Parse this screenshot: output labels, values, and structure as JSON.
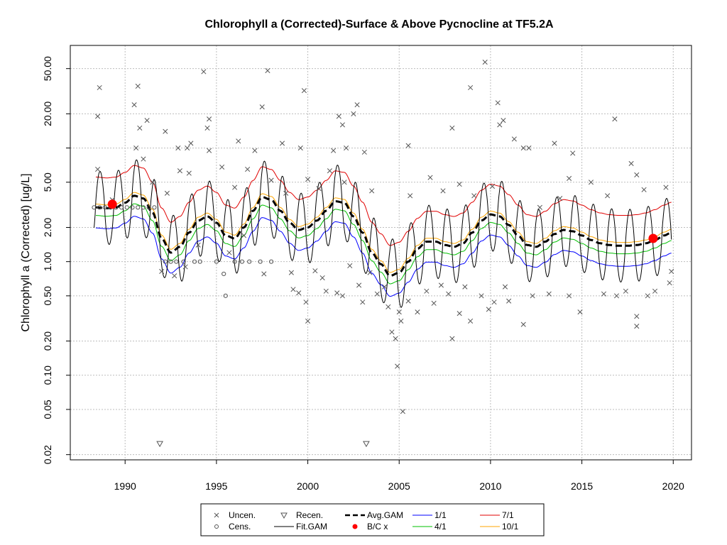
{
  "chart_data": {
    "type": "line",
    "title": "Chlorophyll a (Corrected)-Surface & Above Pycnocline at TF5.2A",
    "ylabel": "Chlorophyll a (Corrected) [ug/L]",
    "xlabel": "",
    "xlim": [
      1987.0,
      2021.0
    ],
    "ylim": [
      0.018,
      80
    ],
    "y_scale": "log",
    "x_ticks": [
      1990,
      1995,
      2000,
      2005,
      2010,
      2015,
      2020
    ],
    "y_ticks": [
      0.02,
      0.05,
      0.1,
      0.2,
      0.5,
      1.0,
      2.0,
      5.0,
      10.0,
      20.0,
      50.0
    ],
    "y_tick_labels": [
      "0.02",
      "0.05",
      "0.10",
      "0.20",
      "0.50",
      "1.00",
      "2.00",
      "5.00",
      "",
      "20.00",
      "50.00"
    ],
    "y_grid": [
      0.02,
      0.05,
      0.1,
      0.2,
      0.5,
      1.0,
      2.0,
      5.0,
      10.0,
      20.0,
      50.0
    ],
    "grid": true,
    "colors": {
      "avg_gam": "#000000",
      "fit_gam": "#000000",
      "d1_1": "#0000ff",
      "d7_1": "#e00000",
      "d4_1": "#00c000",
      "d10_1": "#ffa500",
      "bc": "#ff0000",
      "points": "#555555"
    },
    "avg_gam": {
      "name": "Avg.GAM",
      "x": [
        1988.4,
        1989.0,
        1989.5,
        1990.0,
        1990.5,
        1991.0,
        1991.5,
        1992.0,
        1992.5,
        1993.0,
        1993.5,
        1994.0,
        1994.5,
        1995.0,
        1995.5,
        1996.0,
        1996.5,
        1997.0,
        1997.5,
        1998.0,
        1998.5,
        1999.0,
        1999.5,
        2000.0,
        2000.5,
        2001.0,
        2001.5,
        2002.0,
        2002.5,
        2003.0,
        2003.5,
        2004.0,
        2004.5,
        2005.0,
        2005.5,
        2006.0,
        2006.5,
        2007.0,
        2007.5,
        2008.0,
        2008.5,
        2009.0,
        2009.5,
        2010.0,
        2010.5,
        2011.0,
        2011.5,
        2012.0,
        2012.5,
        2013.0,
        2013.5,
        2014.0,
        2014.5,
        2015.0,
        2015.5,
        2016.0,
        2016.5,
        2017.0,
        2017.5,
        2018.0,
        2018.5,
        2019.0,
        2019.5,
        2019.9
      ],
      "values": [
        3.0,
        2.95,
        3.0,
        3.3,
        3.8,
        3.6,
        2.7,
        1.6,
        1.2,
        1.35,
        1.8,
        2.3,
        2.5,
        2.2,
        1.7,
        1.6,
        2.0,
        2.8,
        3.7,
        3.5,
        2.8,
        2.2,
        1.9,
        2.0,
        2.3,
        2.8,
        3.4,
        3.3,
        2.5,
        1.8,
        1.2,
        0.95,
        0.75,
        0.8,
        1.0,
        1.3,
        1.5,
        1.5,
        1.4,
        1.35,
        1.45,
        1.8,
        2.3,
        2.6,
        2.5,
        2.1,
        1.7,
        1.4,
        1.35,
        1.5,
        1.75,
        1.9,
        1.85,
        1.7,
        1.55,
        1.45,
        1.4,
        1.38,
        1.38,
        1.4,
        1.45,
        1.55,
        1.7,
        1.8
      ]
    },
    "fit_gam": {
      "name": "Fit.GAM",
      "start": 1988.3,
      "end": 2019.9,
      "period": 1.0,
      "amplitude_log10": 0.32,
      "phase": 0.38
    },
    "baseline_series": [
      {
        "name": "1/1",
        "ratio": 0.66
      },
      {
        "name": "4/1",
        "ratio": 0.85
      },
      {
        "name": "10/1",
        "ratio": 1.07
      },
      {
        "name": "7/1",
        "ratio": 1.85
      }
    ],
    "uncensored_points": [
      {
        "x": 1988.6,
        "y": 34
      },
      {
        "x": 1988.5,
        "y": 19
      },
      {
        "x": 1990.5,
        "y": 24
      },
      {
        "x": 1990.7,
        "y": 35
      },
      {
        "x": 1991.2,
        "y": 17.5
      },
      {
        "x": 1990.8,
        "y": 15
      },
      {
        "x": 1990.6,
        "y": 10
      },
      {
        "x": 1992.2,
        "y": 14
      },
      {
        "x": 1992.9,
        "y": 10
      },
      {
        "x": 1993.6,
        "y": 11
      },
      {
        "x": 1993.4,
        "y": 10
      },
      {
        "x": 1994.3,
        "y": 47
      },
      {
        "x": 1994.6,
        "y": 18
      },
      {
        "x": 1994.5,
        "y": 15
      },
      {
        "x": 1994.6,
        "y": 9.5
      },
      {
        "x": 1996.2,
        "y": 11.5
      },
      {
        "x": 1997.1,
        "y": 9.5
      },
      {
        "x": 1997.5,
        "y": 23
      },
      {
        "x": 1997.8,
        "y": 48
      },
      {
        "x": 1998.6,
        "y": 11
      },
      {
        "x": 1999.8,
        "y": 32
      },
      {
        "x": 1999.6,
        "y": 10
      },
      {
        "x": 2001.4,
        "y": 9.5
      },
      {
        "x": 2001.7,
        "y": 19
      },
      {
        "x": 2001.9,
        "y": 16
      },
      {
        "x": 2002.1,
        "y": 10
      },
      {
        "x": 2002.5,
        "y": 20
      },
      {
        "x": 2002.7,
        "y": 24
      },
      {
        "x": 2003.1,
        "y": 9.2
      },
      {
        "x": 2008.9,
        "y": 34
      },
      {
        "x": 2009.7,
        "y": 57
      },
      {
        "x": 2010.4,
        "y": 25
      },
      {
        "x": 2010.5,
        "y": 16
      },
      {
        "x": 2010.7,
        "y": 17.5
      },
      {
        "x": 2011.3,
        "y": 12
      },
      {
        "x": 2011.8,
        "y": 10
      },
      {
        "x": 2012.1,
        "y": 10
      },
      {
        "x": 2013.5,
        "y": 11
      },
      {
        "x": 2014.5,
        "y": 9
      },
      {
        "x": 2016.8,
        "y": 18
      },
      {
        "x": 2007.9,
        "y": 15
      },
      {
        "x": 2005.5,
        "y": 10.5
      },
      {
        "x": 1988.5,
        "y": 6.5
      },
      {
        "x": 1989.3,
        "y": 3.5
      },
      {
        "x": 1991.0,
        "y": 8
      },
      {
        "x": 1991.5,
        "y": 5
      },
      {
        "x": 1992.3,
        "y": 4
      },
      {
        "x": 1993.0,
        "y": 6.3
      },
      {
        "x": 1993.5,
        "y": 6.0
      },
      {
        "x": 1995.3,
        "y": 6.8
      },
      {
        "x": 1996.0,
        "y": 4.5
      },
      {
        "x": 1996.7,
        "y": 6.5
      },
      {
        "x": 1998.0,
        "y": 5.2
      },
      {
        "x": 1998.8,
        "y": 4.0
      },
      {
        "x": 2000.0,
        "y": 5.3
      },
      {
        "x": 2000.6,
        "y": 4.4
      },
      {
        "x": 2001.2,
        "y": 6.3
      },
      {
        "x": 2002.0,
        "y": 5.0
      },
      {
        "x": 2003.5,
        "y": 4.2
      },
      {
        "x": 2005.6,
        "y": 3.8
      },
      {
        "x": 2006.7,
        "y": 5.5
      },
      {
        "x": 2007.4,
        "y": 4.2
      },
      {
        "x": 2008.3,
        "y": 4.8
      },
      {
        "x": 2009.1,
        "y": 3.8
      },
      {
        "x": 2010.1,
        "y": 4.6
      },
      {
        "x": 2012.7,
        "y": 3.0
      },
      {
        "x": 2013.8,
        "y": 3.6
      },
      {
        "x": 2014.3,
        "y": 5.4
      },
      {
        "x": 2015.5,
        "y": 5.0
      },
      {
        "x": 2016.4,
        "y": 3.8
      },
      {
        "x": 2017.7,
        "y": 7.3
      },
      {
        "x": 2018.0,
        "y": 5.8
      },
      {
        "x": 2018.4,
        "y": 4.3
      },
      {
        "x": 2019.6,
        "y": 4.5
      },
      {
        "x": 1992.0,
        "y": 0.82
      },
      {
        "x": 1992.7,
        "y": 0.75
      },
      {
        "x": 1993.3,
        "y": 0.9
      },
      {
        "x": 1994.0,
        "y": 1.4
      },
      {
        "x": 1995.7,
        "y": 1.2
      },
      {
        "x": 1996.5,
        "y": 1.7
      },
      {
        "x": 1997.6,
        "y": 0.78
      },
      {
        "x": 1999.1,
        "y": 0.8
      },
      {
        "x": 1999.2,
        "y": 0.57
      },
      {
        "x": 1999.5,
        "y": 0.53
      },
      {
        "x": 1999.9,
        "y": 0.44
      },
      {
        "x": 2000.0,
        "y": 0.3
      },
      {
        "x": 2000.4,
        "y": 0.83
      },
      {
        "x": 2000.8,
        "y": 0.72
      },
      {
        "x": 2001.0,
        "y": 0.55
      },
      {
        "x": 2001.6,
        "y": 0.53
      },
      {
        "x": 2001.9,
        "y": 0.5
      },
      {
        "x": 2002.3,
        "y": 0.92
      },
      {
        "x": 2002.8,
        "y": 0.62
      },
      {
        "x": 2003.0,
        "y": 0.44
      },
      {
        "x": 2003.4,
        "y": 0.8
      },
      {
        "x": 2003.8,
        "y": 0.52
      },
      {
        "x": 2004.2,
        "y": 0.6
      },
      {
        "x": 2004.4,
        "y": 0.4
      },
      {
        "x": 2004.6,
        "y": 0.24
      },
      {
        "x": 2004.8,
        "y": 0.21
      },
      {
        "x": 2004.9,
        "y": 0.12
      },
      {
        "x": 2005.0,
        "y": 0.36
      },
      {
        "x": 2005.1,
        "y": 0.3
      },
      {
        "x": 2005.2,
        "y": 0.048
      },
      {
        "x": 2005.5,
        "y": 0.45
      },
      {
        "x": 2006.0,
        "y": 0.36
      },
      {
        "x": 2006.5,
        "y": 0.55
      },
      {
        "x": 2006.9,
        "y": 0.43
      },
      {
        "x": 2007.3,
        "y": 0.62
      },
      {
        "x": 2007.7,
        "y": 0.52
      },
      {
        "x": 2007.9,
        "y": 0.21
      },
      {
        "x": 2008.3,
        "y": 0.35
      },
      {
        "x": 2008.6,
        "y": 0.6
      },
      {
        "x": 2008.9,
        "y": 0.3
      },
      {
        "x": 2009.5,
        "y": 0.5
      },
      {
        "x": 2009.9,
        "y": 0.38
      },
      {
        "x": 2010.2,
        "y": 0.44
      },
      {
        "x": 2010.8,
        "y": 0.6
      },
      {
        "x": 2011.0,
        "y": 0.45
      },
      {
        "x": 2011.8,
        "y": 0.28
      },
      {
        "x": 2012.3,
        "y": 0.5
      },
      {
        "x": 2013.2,
        "y": 0.52
      },
      {
        "x": 2014.3,
        "y": 0.5
      },
      {
        "x": 2014.9,
        "y": 0.36
      },
      {
        "x": 2016.2,
        "y": 0.52
      },
      {
        "x": 2016.9,
        "y": 0.5
      },
      {
        "x": 2017.4,
        "y": 0.55
      },
      {
        "x": 2018.0,
        "y": 0.33
      },
      {
        "x": 2018.0,
        "y": 0.27
      },
      {
        "x": 2018.6,
        "y": 0.5
      },
      {
        "x": 2019.0,
        "y": 0.55
      },
      {
        "x": 2019.8,
        "y": 0.65
      },
      {
        "x": 2019.9,
        "y": 0.82
      }
    ],
    "recensored_points": [
      {
        "x": 1991.9,
        "y": 0.025
      },
      {
        "x": 2003.2,
        "y": 0.025
      }
    ],
    "censored_points": [
      {
        "x": 1988.3,
        "y": 3.0
      },
      {
        "x": 1988.6,
        "y": 3.0
      },
      {
        "x": 1988.9,
        "y": 3.0
      },
      {
        "x": 1989.2,
        "y": 3.0
      },
      {
        "x": 1989.5,
        "y": 3.0
      },
      {
        "x": 1989.8,
        "y": 3.0
      },
      {
        "x": 1990.1,
        "y": 3.0
      },
      {
        "x": 1990.4,
        "y": 3.0
      },
      {
        "x": 1990.7,
        "y": 3.0
      },
      {
        "x": 1991.0,
        "y": 3.0
      },
      {
        "x": 1991.3,
        "y": 3.0
      },
      {
        "x": 1991.6,
        "y": 3.0
      },
      {
        "x": 1992.2,
        "y": 1.0
      },
      {
        "x": 1992.5,
        "y": 1.0
      },
      {
        "x": 1992.8,
        "y": 1.0
      },
      {
        "x": 1993.2,
        "y": 1.0
      },
      {
        "x": 1993.8,
        "y": 1.0
      },
      {
        "x": 1994.1,
        "y": 1.0
      },
      {
        "x": 1995.0,
        "y": 1.0
      },
      {
        "x": 1995.4,
        "y": 0.78
      },
      {
        "x": 1995.5,
        "y": 0.5
      },
      {
        "x": 1996.0,
        "y": 1.0
      },
      {
        "x": 1996.4,
        "y": 1.0
      },
      {
        "x": 1996.8,
        "y": 1.0
      },
      {
        "x": 1997.4,
        "y": 1.0
      },
      {
        "x": 1998.0,
        "y": 1.0
      }
    ],
    "bc_points": [
      {
        "x": 1989.3,
        "y": 3.2
      },
      {
        "x": 2018.9,
        "y": 1.6
      }
    ],
    "legend": {
      "items": [
        {
          "label": "Uncen.",
          "symbol": "x"
        },
        {
          "label": "Cens.",
          "symbol": "circle"
        },
        {
          "label": "Recen.",
          "symbol": "triangle"
        },
        {
          "label": "Fit.GAM",
          "symbol": "line"
        },
        {
          "label": "Avg.GAM",
          "symbol": "dashed"
        },
        {
          "label": "B/C x",
          "symbol": "dot"
        },
        {
          "label": "1/1",
          "symbol": "line"
        },
        {
          "label": "4/1",
          "symbol": "line"
        },
        {
          "label": "7/1",
          "symbol": "line"
        },
        {
          "label": "10/1",
          "symbol": "line"
        }
      ]
    }
  }
}
